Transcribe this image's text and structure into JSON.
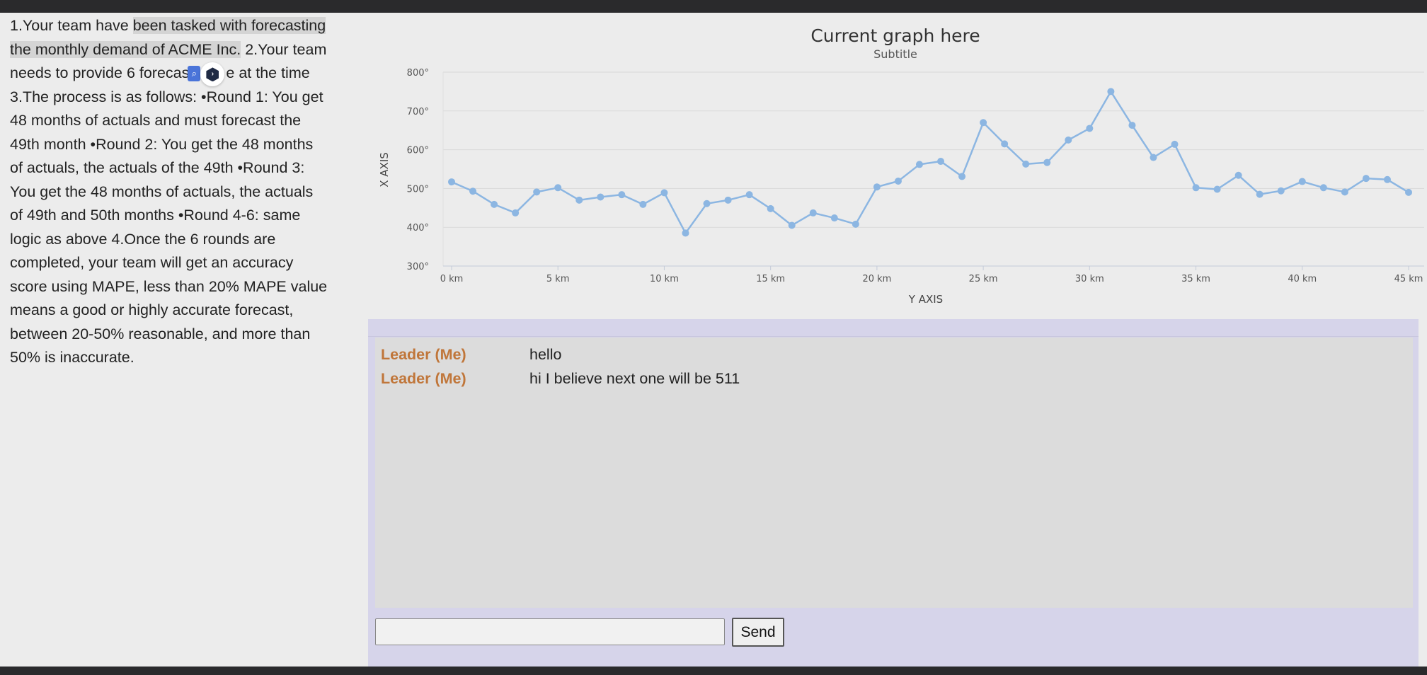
{
  "instructions": {
    "line1_pre": "1.Your team have ",
    "line1_hl": "been tasked with forecasting",
    "line2_hl": "the monthly demand of ACME Inc.",
    "line2_post": " 2.Your team",
    "line3_pre": "needs to provide 6 forecas",
    "line3_post": "e at the time",
    "rest": [
      "3.The process is as follows: •Round 1: You get",
      "48 months of actuals and must forecast the",
      "49th month •Round 2: You get the 48 months",
      "of actuals, the actuals of the 49th •Round 3:",
      "You get the 48 months of actuals, the actuals",
      "of 49th and 50th months •Round 4-6: same",
      "logic as above 4.Once the 6 rounds are",
      "completed, your team will get an accuracy",
      "score using MAPE, less than 20% MAPE value",
      "means a good or highly accurate forecast,",
      "between 20-50% reasonable, and more than",
      "50% is inaccurate."
    ]
  },
  "overlay": {
    "search_icon": "magnifier-icon",
    "extension_icon": "extension-hex-icon"
  },
  "chart_data": {
    "type": "line",
    "title": "Current graph here",
    "subtitle": "Subtitle",
    "xlabel": "Y AXIS",
    "ylabel": "X AXIS",
    "x": [
      0,
      1,
      2,
      3,
      4,
      5,
      6,
      7,
      8,
      9,
      10,
      11,
      12,
      13,
      14,
      15,
      16,
      17,
      18,
      19,
      20,
      21,
      22,
      23,
      24,
      25,
      26,
      27,
      28,
      29,
      30,
      31,
      32,
      33,
      34,
      35,
      36,
      37,
      38,
      39,
      40,
      41,
      42,
      43,
      44,
      45
    ],
    "values": [
      517,
      493,
      459,
      437,
      491,
      502,
      470,
      478,
      484,
      459,
      489,
      385,
      461,
      470,
      484,
      448,
      405,
      437,
      424,
      408,
      504,
      519,
      562,
      570,
      531,
      670,
      615,
      563,
      567,
      625,
      655,
      750,
      663,
      580,
      614,
      502,
      498,
      534,
      485,
      494,
      518,
      502,
      491,
      526,
      523,
      490
    ],
    "xlim": [
      0,
      45
    ],
    "ylim": [
      300,
      800
    ],
    "x_ticks": [
      0,
      5,
      10,
      15,
      20,
      25,
      30,
      35,
      40,
      45
    ],
    "x_tick_labels": [
      "0 km",
      "5 km",
      "10 km",
      "15 km",
      "20 km",
      "25 km",
      "30 km",
      "35 km",
      "40 km",
      "45 km"
    ],
    "y_ticks": [
      300,
      400,
      500,
      600,
      700,
      800
    ],
    "y_tick_labels": [
      "300°",
      "400°",
      "500°",
      "600°",
      "700°",
      "800°"
    ],
    "line_color": "#8cb6e2",
    "grid": true
  },
  "chat": {
    "messages": [
      {
        "sender": "Leader (Me)",
        "text": "hello"
      },
      {
        "sender": "Leader (Me)",
        "text": "hi I believe next one will be 511"
      }
    ],
    "input_value": "",
    "send_label": "Send"
  }
}
